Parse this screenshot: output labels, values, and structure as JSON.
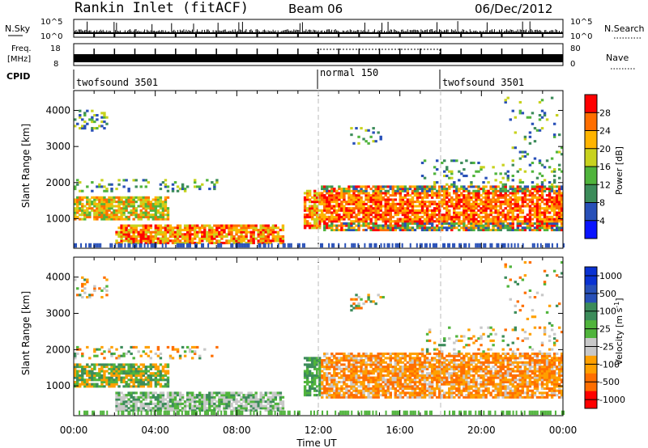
{
  "header": {
    "station": "Rankin Inlet (fitACF)",
    "beam": "Beam 06",
    "date": "06/Dec/2012"
  },
  "strips": {
    "nsky": {
      "label": "N.Sky",
      "ticks": [
        "10^5",
        "10^0"
      ]
    },
    "nsearch": {
      "label": "N.Search",
      "ticks": [
        "10^5",
        "10^0"
      ]
    },
    "freq": {
      "label_line1": "Freq.",
      "label_line2": "[MHz]",
      "ticks": [
        "18",
        "8"
      ]
    },
    "nave": {
      "label": "Nave",
      "ticks": [
        "80",
        "0"
      ]
    },
    "cpid": {
      "label": "CPID",
      "segments": [
        {
          "name": "twofsound 3501",
          "start_h": 0,
          "end_h": 12
        },
        {
          "name": "normal 150",
          "start_h": 12,
          "end_h": 18
        },
        {
          "name": "twofsound 3501",
          "start_h": 18,
          "end_h": 24
        }
      ]
    }
  },
  "colors": {
    "power": [
      "#0a14ff",
      "#2850b8",
      "#3c8c5a",
      "#50b43c",
      "#c8d21e",
      "#ffb400",
      "#ff6e00",
      "#ff0000"
    ],
    "velocity": [
      "#ff0000",
      "#ff6e00",
      "#ffa000",
      "#c8c8c8",
      "#50b43c",
      "#3c8c5a",
      "#2850b8",
      "#0a32d2"
    ]
  },
  "chart_data": [
    {
      "type": "heatmap",
      "name": "power",
      "xlabel": "",
      "ylabel": "Slant Range [km]",
      "xlim": [
        0,
        24
      ],
      "ylim": [
        180,
        4550
      ],
      "yticks": [
        1000,
        2000,
        3000,
        4000
      ],
      "colorbar_label": "Power [dB]",
      "colorbar_ticks": [
        "4",
        "8",
        "12",
        "16",
        "20",
        "24",
        "28"
      ],
      "colorbar_range": [
        0,
        32
      ]
    },
    {
      "type": "heatmap",
      "name": "velocity",
      "xlabel": "Time UT",
      "ylabel": "Slant Range [km]",
      "xlim": [
        0,
        24
      ],
      "ylim": [
        180,
        4550
      ],
      "yticks": [
        1000,
        2000,
        3000,
        4000
      ],
      "xticks": [
        "00:00",
        "04:00",
        "08:00",
        "12:00",
        "16:00",
        "20:00",
        "00:00"
      ],
      "colorbar_label": "Velocity [m s^-1]",
      "colorbar_ticks": [
        "-1000",
        "-500",
        "-100",
        "-25",
        "25",
        "100",
        "500",
        "1000"
      ]
    }
  ]
}
